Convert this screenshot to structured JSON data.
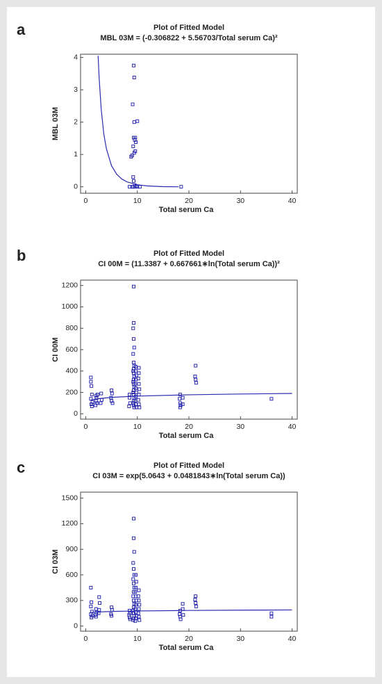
{
  "chart_data": [
    {
      "type": "scatter",
      "panel_label": "a",
      "title": "Plot of Fitted Model",
      "subtitle": "MBL 03M = (-0.306822 + 5.56703/Total serum Ca)²",
      "xlabel": "Total serum Ca",
      "ylabel": "MBL 03M",
      "color": "#2a2ab0",
      "xlim": [
        -1,
        41
      ],
      "ylim": [
        -0.2,
        4.1
      ],
      "xticks": [
        0,
        10,
        20,
        30,
        40
      ],
      "yticks": [
        0,
        1,
        2,
        3,
        4
      ],
      "x": [
        9.3,
        9.4,
        9.1,
        10.0,
        9.4,
        9.3,
        9.6,
        9.5,
        9.7,
        9.2,
        9.6,
        9.4,
        9.0,
        8.8,
        9.2,
        9.3,
        9.5,
        9.8,
        8.5,
        9.0,
        9.5,
        10.0,
        10.5,
        18.5,
        9.2
      ],
      "y": [
        3.75,
        3.38,
        2.55,
        2.03,
        2.0,
        1.52,
        1.52,
        1.45,
        1.38,
        1.25,
        1.1,
        1.05,
        0.97,
        0.93,
        0.3,
        0.18,
        0.05,
        0.02,
        0,
        0,
        0,
        0,
        0,
        0,
        0
      ],
      "fit_x": [
        2.4,
        2.6,
        3,
        3.5,
        4,
        5,
        6,
        7,
        8,
        10,
        12,
        15,
        18
      ],
      "fit_y": [
        4.05,
        3.37,
        2.4,
        1.64,
        1.18,
        0.65,
        0.386,
        0.239,
        0.151,
        0.062,
        0.025,
        0.004,
        0
      ]
    },
    {
      "type": "scatter",
      "panel_label": "b",
      "title": "Plot of Fitted Model",
      "subtitle": "CI 00M = (11.3387 + 0.667661∗ln(Total serum Ca))²",
      "xlabel": "Total serum Ca",
      "ylabel": "CI 00M",
      "color": "#2a2ab0",
      "xlim": [
        -1,
        41
      ],
      "ylim": [
        -50,
        1250
      ],
      "xticks": [
        0,
        10,
        20,
        30,
        40
      ],
      "yticks": [
        0,
        200,
        400,
        600,
        800,
        1000,
        1200
      ],
      "x": [
        1.0,
        1.0,
        1.1,
        1.2,
        1.0,
        1.3,
        1.1,
        1.2,
        2.0,
        2.1,
        2.0,
        2.2,
        1.9,
        2.3,
        3.0,
        3.1,
        2.9,
        5.0,
        5.1,
        4.9,
        5.0,
        5.2,
        8.5,
        8.6,
        8.4,
        8.5,
        9.3,
        9.3,
        9.2,
        9.3,
        9.4,
        9.2,
        9.3,
        9.4,
        9.3,
        9.2,
        9.3,
        9.4,
        9.3,
        9.2,
        9.3,
        9.4,
        9.3,
        9.2,
        9.3,
        9.4,
        9.3,
        9.2,
        9.3,
        9.4,
        9.7,
        9.7,
        9.8,
        9.7,
        9.6,
        9.7,
        9.8,
        9.7,
        9.6,
        9.7,
        9.8,
        10.3,
        10.3,
        10.2,
        10.3,
        10.4,
        10.3,
        10.2,
        10.3,
        10.4,
        18.3,
        18.2,
        18.3,
        18.4,
        18.3,
        18.8,
        18.8,
        21.3,
        21.2,
        21.3,
        21.4,
        36.0
      ],
      "y": [
        340,
        300,
        260,
        180,
        140,
        110,
        90,
        70,
        170,
        150,
        120,
        100,
        80,
        180,
        190,
        130,
        100,
        220,
        190,
        150,
        120,
        100,
        150,
        100,
        70,
        180,
        1190,
        850,
        800,
        700,
        620,
        560,
        480,
        450,
        420,
        400,
        380,
        350,
        320,
        300,
        280,
        250,
        220,
        200,
        180,
        150,
        120,
        100,
        80,
        60,
        440,
        400,
        360,
        320,
        280,
        240,
        200,
        160,
        120,
        90,
        60,
        430,
        380,
        330,
        280,
        230,
        180,
        130,
        90,
        60,
        180,
        140,
        100,
        80,
        60,
        150,
        90,
        450,
        350,
        320,
        290,
        140
      ],
      "fit_x": [
        1,
        2,
        5,
        10,
        20,
        30,
        40
      ],
      "fit_y": [
        128.6,
        139.3,
        154.1,
        165.8,
        177.9,
        185.2,
        190.5
      ]
    },
    {
      "type": "scatter",
      "panel_label": "c",
      "title": "Plot of Fitted Model",
      "subtitle": "CI 03M = exp(5.0643 + 0.0481843∗ln(Total serum Ca))",
      "xlabel": "Total serum Ca",
      "ylabel": "CI 03M",
      "color": "#2a2ab0",
      "xlim": [
        -1,
        41
      ],
      "ylim": [
        -60,
        1570
      ],
      "xticks": [
        0,
        10,
        20,
        30,
        40
      ],
      "yticks": [
        0,
        300,
        600,
        900,
        1200,
        1500
      ],
      "x": [
        1.0,
        1.1,
        1.0,
        1.2,
        1.0,
        1.3,
        1.1,
        2.0,
        2.1,
        1.9,
        2.0,
        2.6,
        2.7,
        2.6,
        2.5,
        5.0,
        5.1,
        4.9,
        5.0,
        8.5,
        8.6,
        8.4,
        8.5,
        8.6,
        9.3,
        9.3,
        9.4,
        9.2,
        9.3,
        9.4,
        9.2,
        9.3,
        9.4,
        9.3,
        9.2,
        9.3,
        9.4,
        9.3,
        9.2,
        9.3,
        9.4,
        9.3,
        9.2,
        9.7,
        9.8,
        9.7,
        9.6,
        9.7,
        9.8,
        9.7,
        9.6,
        9.7,
        9.8,
        9.7,
        9.6,
        10.3,
        10.2,
        10.3,
        10.4,
        10.3,
        10.2,
        10.3,
        10.4,
        18.3,
        18.2,
        18.3,
        18.4,
        18.8,
        18.8,
        18.9,
        21.3,
        21.2,
        21.3,
        21.4,
        36.0,
        36.0
      ],
      "y": [
        450,
        280,
        230,
        170,
        140,
        120,
        100,
        200,
        160,
        130,
        110,
        340,
        270,
        190,
        150,
        220,
        190,
        140,
        120,
        180,
        150,
        130,
        100,
        80,
        1260,
        1030,
        870,
        740,
        670,
        600,
        550,
        500,
        450,
        400,
        350,
        300,
        260,
        220,
        180,
        150,
        120,
        90,
        70,
        600,
        520,
        450,
        400,
        350,
        300,
        250,
        200,
        160,
        120,
        90,
        60,
        420,
        350,
        300,
        250,
        200,
        150,
        110,
        70,
        180,
        140,
        110,
        80,
        260,
        200,
        130,
        350,
        310,
        270,
        230,
        150,
        110
      ],
      "fit_x": [
        1,
        2,
        5,
        10,
        20,
        30,
        40
      ],
      "fit_y": [
        158.3,
        163.6,
        171.0,
        176.9,
        182.9,
        186.5,
        189.0
      ]
    }
  ]
}
